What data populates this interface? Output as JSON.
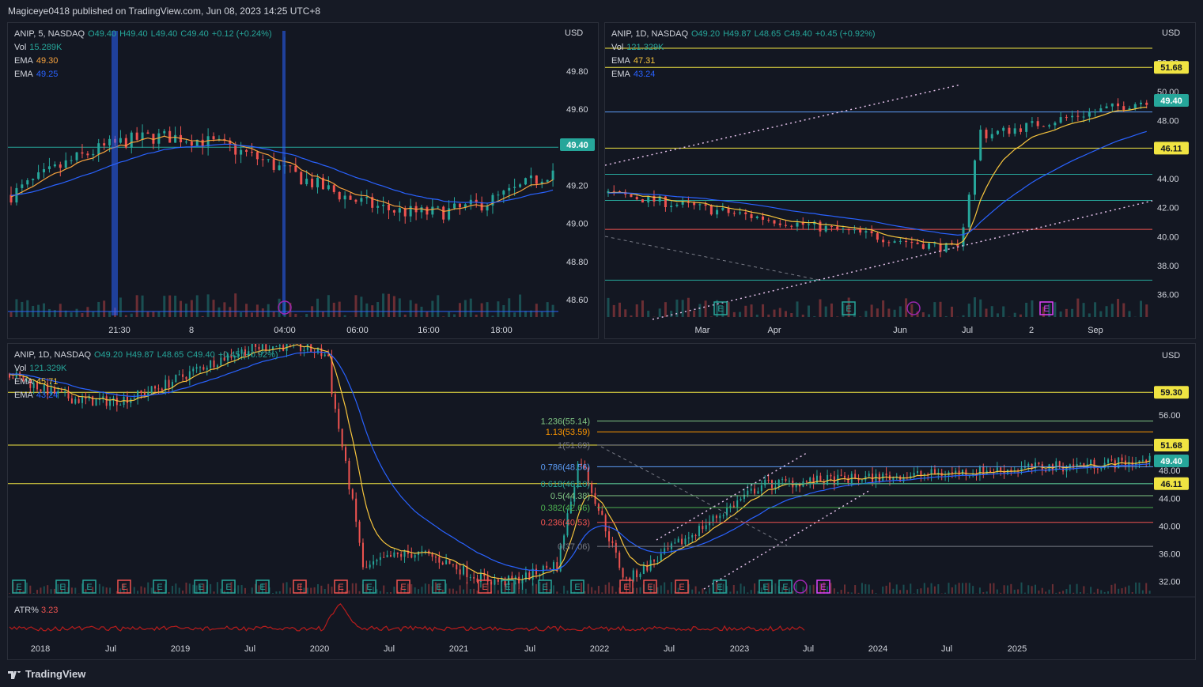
{
  "header": {
    "publisher": "Magiceye0418 published on TradingView.com, Jun 08, 2023 14:25 UTC+8"
  },
  "footer": {
    "brand": "TradingView"
  },
  "colors": {
    "bg": "#131722",
    "up": "#26a69a",
    "down": "#ef5350",
    "ema_fast": "#f7c53d",
    "ema_slow": "#2962ff",
    "hline_yellow": "#f0e442",
    "grid": "#2a2e39"
  },
  "panes": {
    "p1": {
      "symbol": "ANIP, 5, NASDAQ",
      "o": "O49.40",
      "h": "H49.40",
      "l": "L49.40",
      "c": "C49.40",
      "chg": "+0.12 (+0.24%)",
      "vol_label": "Vol",
      "vol": "15.289K",
      "ema1_label": "EMA",
      "ema1": "49.30",
      "ema2_label": "EMA",
      "ema2": "49.25",
      "currency": "USD",
      "yticks": [
        "49.80",
        "49.60",
        "49.40",
        "49.20",
        "49.00",
        "48.80",
        "48.60"
      ],
      "xticks": [
        "21:30",
        "8",
        "04:00",
        "06:00",
        "16:00",
        "18:00"
      ],
      "price_badge": "49.40"
    },
    "p2": {
      "symbol": "ANIP, 1D, NASDAQ",
      "o": "O49.20",
      "h": "H49.87",
      "l": "L48.65",
      "c": "C49.40",
      "chg": "+0.45 (+0.92%)",
      "vol_label": "Vol",
      "vol": "121.329K",
      "ema1_label": "EMA",
      "ema1": "47.31",
      "ema2_label": "EMA",
      "ema2": "43.24",
      "currency": "USD",
      "yticks": [
        "52.00",
        "50.00",
        "48.00",
        "44.00",
        "42.00",
        "40.00",
        "38.00",
        "36.00"
      ],
      "xticks": [
        "Mar",
        "Apr",
        "Jun",
        "Jul",
        "2",
        "Sep"
      ],
      "badges": [
        "51.68",
        "49.40",
        "46.11"
      ]
    },
    "p3": {
      "symbol": "ANIP, 1D, NASDAQ",
      "o": "O49.20",
      "h": "H49.87",
      "l": "L48.65",
      "c": "C49.40",
      "chg": "+0.45 (+0.92%)",
      "vol_label": "Vol",
      "vol": "121.329K",
      "ema1_label": "EMA",
      "ema1": "45.71",
      "ema2_label": "EMA",
      "ema2": "43.24",
      "currency": "USD",
      "yticks": [
        "56.00",
        "48.00",
        "44.00",
        "40.00",
        "36.00",
        "32.00"
      ],
      "xticks": [
        "2018",
        "Jul",
        "2019",
        "Jul",
        "2020",
        "Jul",
        "2021",
        "Jul",
        "2022",
        "Jul",
        "2023",
        "Jul",
        "2024",
        "Jul",
        "2025"
      ],
      "badges": [
        "59.30",
        "51.68",
        "49.40",
        "46.11"
      ],
      "fib": [
        "1.236(55.14)",
        "1.13(53.59)",
        "1(51.69)",
        "0.786(48.56)",
        "0.618(46.10)",
        "0.5(44.38)",
        "0.382(42.66)",
        "0.236(40.53)",
        "0(37.06)"
      ],
      "atr_label": "ATR%",
      "atr_value": "3.23"
    }
  },
  "chart_data": [
    {
      "type": "candlestick",
      "title": "ANIP, 5, NASDAQ",
      "ylabel": "USD",
      "ylim": [
        48.55,
        49.92
      ],
      "hlines": [
        49.4
      ],
      "series": [
        {
          "name": "EMA",
          "value": 49.3
        },
        {
          "name": "EMA",
          "value": 49.25
        }
      ]
    },
    {
      "type": "candlestick",
      "title": "ANIP, 1D, NASDAQ",
      "ylabel": "USD",
      "ylim": [
        35.0,
        53.0
      ],
      "hlines": [
        53.0,
        51.68,
        48.6,
        46.11,
        44.3,
        42.5,
        40.5,
        37.0
      ],
      "series": [
        {
          "name": "EMA",
          "value": 47.31
        },
        {
          "name": "EMA",
          "value": 43.24
        }
      ]
    },
    {
      "type": "candlestick",
      "title": "ANIP, 1D, NASDAQ",
      "ylabel": "USD",
      "ylim": [
        30.0,
        64.0
      ],
      "hlines": [
        59.3,
        51.68,
        46.11
      ],
      "fib_levels": [
        {
          "ratio": 1.236,
          "price": 55.14
        },
        {
          "ratio": 1.13,
          "price": 53.59
        },
        {
          "ratio": 1,
          "price": 51.69
        },
        {
          "ratio": 0.786,
          "price": 48.56
        },
        {
          "ratio": 0.618,
          "price": 46.1
        },
        {
          "ratio": 0.5,
          "price": 44.38
        },
        {
          "ratio": 0.382,
          "price": 42.66
        },
        {
          "ratio": 0.236,
          "price": 40.53
        },
        {
          "ratio": 0,
          "price": 37.06
        }
      ],
      "indicator": {
        "name": "ATR%",
        "value": 3.23
      }
    }
  ]
}
